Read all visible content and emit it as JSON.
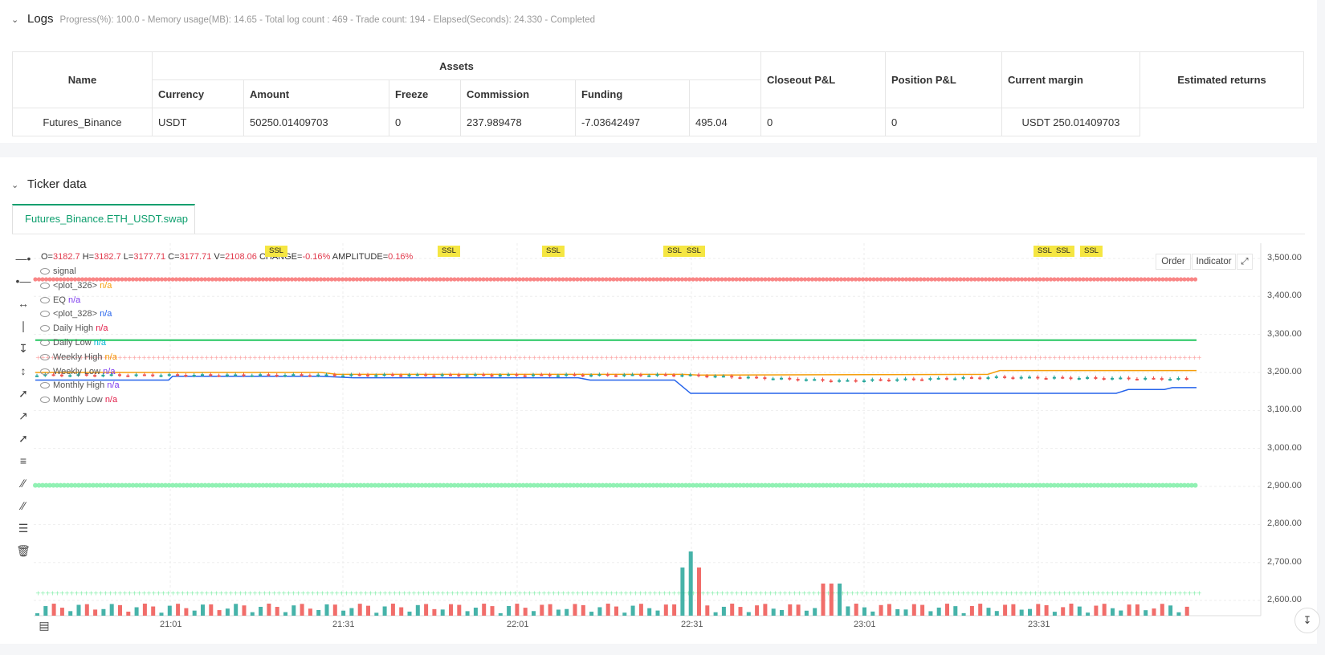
{
  "logs": {
    "title": "Logs",
    "meta": "Progress(%): 100.0  - Memory usage(MB): 14.65 - Total log count : 469 - Trade count:  194 - Elapsed(Seconds): 24.330 - Completed"
  },
  "assets_table": {
    "headers": {
      "name": "Name",
      "assets": "Assets",
      "currency": "Currency",
      "amount": "Amount",
      "freeze": "Freeze",
      "commission": "Commission",
      "funding": "Funding",
      "closeout": "Closeout P&L",
      "position": "Position P&L",
      "margin": "Current margin",
      "estimated": "Estimated returns"
    },
    "row": {
      "name": "Futures_Binance",
      "currency": "USDT",
      "amount": "50250.01409703",
      "freeze": "0",
      "commission": "237.989478",
      "funding": "-7.03642497",
      "closeout": "495.04",
      "position": "0",
      "margin": "0",
      "estimated": "USDT 250.01409703"
    }
  },
  "ticker": {
    "title": "Ticker data",
    "tab": "Futures_Binance.ETH_USDT.swap",
    "buttons": {
      "order": "Order",
      "indicator": "Indicator"
    },
    "ohlc": {
      "o_label": "O=",
      "o": "3182.7",
      "h_label": " H=",
      "h": "3182.7",
      "l_label": " L=",
      "l": "3177.71",
      "c_label": " C=",
      "c": "3177.71",
      "v_label": " V=",
      "v": "2108.06",
      "change_label": " CHANGE=",
      "change": "-0.16%",
      "amp_label": " AMPLITUDE=",
      "amp": "0.16%"
    },
    "legend": [
      {
        "label": "signal",
        "value": "",
        "color": "#555555"
      },
      {
        "label": "<plot_326>",
        "value": "n/a",
        "color": "#f59e0b"
      },
      {
        "label": "EQ",
        "value": "n/a",
        "color": "#7c3aed"
      },
      {
        "label": "<plot_328>",
        "value": "n/a",
        "color": "#2563eb"
      },
      {
        "label": "Daily High",
        "value": "n/a",
        "color": "#e11d48"
      },
      {
        "label": "Daily Low",
        "value": "n/a",
        "color": "#06b6d4"
      },
      {
        "label": "Weekly High",
        "value": "n/a",
        "color": "#f59e0b"
      },
      {
        "label": "Weekly Low",
        "value": "n/a",
        "color": "#7c3aed"
      },
      {
        "label": "Monthly High",
        "value": "n/a",
        "color": "#7c3aed"
      },
      {
        "label": "Monthly Low",
        "value": "n/a",
        "color": "#e11d48"
      }
    ],
    "ssl_labels": [
      "SSL",
      "SSL",
      "SSL",
      "SSL",
      "SSL",
      "SSL",
      "SSL",
      "SSL"
    ]
  },
  "chart_data": {
    "type": "candlestick",
    "y_ticks": [
      "3,500.00",
      "3,400.00",
      "3,300.00",
      "3,200.00",
      "3,100.00",
      "3,000.00",
      "2,900.00",
      "2,800.00",
      "2,700.00",
      "2,600.00"
    ],
    "x_ticks": [
      "21:01",
      "21:31",
      "22:01",
      "22:31",
      "23:01",
      "23:31"
    ],
    "ylim": [
      2560,
      3540
    ],
    "levels": {
      "red_dots": 3445,
      "green_line": 3285,
      "pink_cross": 3240,
      "green_dots": 2903,
      "green_cross": 2620
    },
    "colors": {
      "up": "#26a69a",
      "down": "#ef5350",
      "orange": "#f59e0b",
      "blue": "#2563eb"
    }
  }
}
